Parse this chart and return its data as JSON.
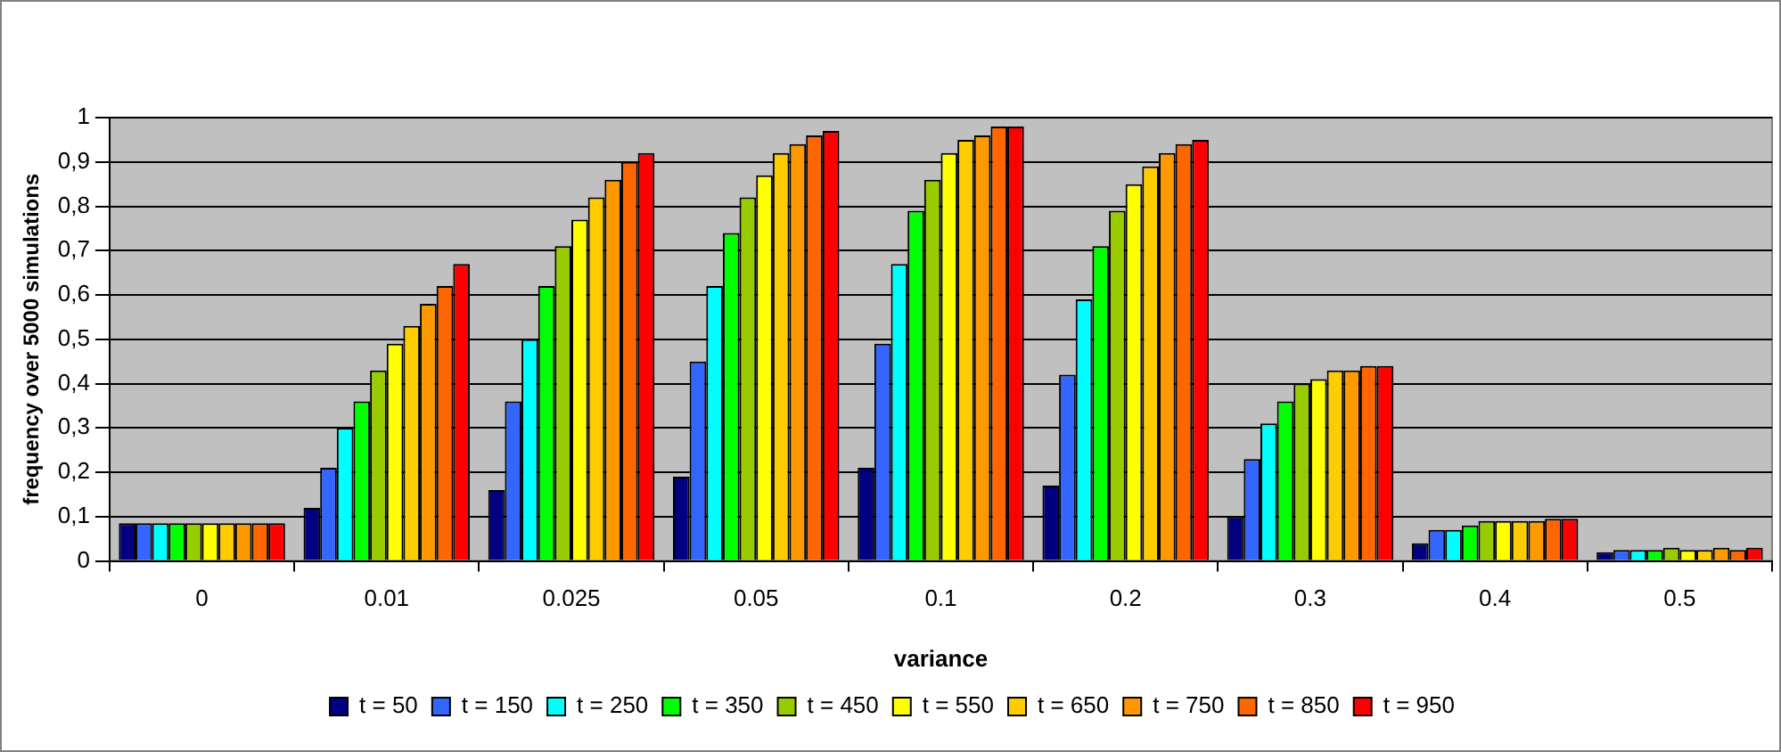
{
  "chart_data": {
    "type": "bar",
    "xlabel": "variance",
    "ylabel": "frequency over 5000 simulations",
    "categories": [
      "0",
      "0.01",
      "0.025",
      "0.05",
      "0.1",
      "0.2",
      "0.3",
      "0.4",
      "0.5"
    ],
    "series": [
      {
        "name": "t = 50",
        "color": "#000080",
        "values": [
          0.085,
          0.12,
          0.16,
          0.19,
          0.21,
          0.17,
          0.1,
          0.04,
          0.02
        ]
      },
      {
        "name": "t = 150",
        "color": "#3366ff",
        "values": [
          0.085,
          0.21,
          0.36,
          0.45,
          0.49,
          0.42,
          0.23,
          0.07,
          0.025
        ]
      },
      {
        "name": "t = 250",
        "color": "#00ffff",
        "values": [
          0.085,
          0.3,
          0.5,
          0.62,
          0.67,
          0.59,
          0.31,
          0.07,
          0.025
        ]
      },
      {
        "name": "t = 350",
        "color": "#00ff00",
        "values": [
          0.085,
          0.36,
          0.62,
          0.74,
          0.79,
          0.71,
          0.36,
          0.08,
          0.025
        ]
      },
      {
        "name": "t = 450",
        "color": "#99cc00",
        "values": [
          0.085,
          0.43,
          0.71,
          0.82,
          0.86,
          0.79,
          0.4,
          0.09,
          0.03
        ]
      },
      {
        "name": "t = 550",
        "color": "#ffff00",
        "values": [
          0.085,
          0.49,
          0.77,
          0.87,
          0.92,
          0.85,
          0.41,
          0.09,
          0.025
        ]
      },
      {
        "name": "t = 650",
        "color": "#ffcc00",
        "values": [
          0.085,
          0.53,
          0.82,
          0.92,
          0.95,
          0.89,
          0.43,
          0.09,
          0.025
        ]
      },
      {
        "name": "t = 750",
        "color": "#ff9900",
        "values": [
          0.085,
          0.58,
          0.86,
          0.94,
          0.96,
          0.92,
          0.43,
          0.09,
          0.03
        ]
      },
      {
        "name": "t = 850",
        "color": "#ff6600",
        "values": [
          0.085,
          0.62,
          0.9,
          0.96,
          0.98,
          0.94,
          0.44,
          0.095,
          0.025
        ]
      },
      {
        "name": "t = 950",
        "color": "#ff0000",
        "values": [
          0.085,
          0.67,
          0.92,
          0.97,
          0.98,
          0.95,
          0.44,
          0.095,
          0.03
        ]
      }
    ],
    "ylim": [
      0,
      1
    ],
    "yticks": [
      0,
      {
        "value": 0.1,
        "label": "0,1"
      },
      {
        "value": 0.2,
        "label": "0,2"
      },
      {
        "value": 0.3,
        "label": "0,3"
      },
      {
        "value": 0.4,
        "label": "0,4"
      },
      {
        "value": 0.5,
        "label": "0,5"
      },
      {
        "value": 0.6,
        "label": "0,6"
      },
      {
        "value": 0.7,
        "label": "0,7"
      },
      {
        "value": 0.8,
        "label": "0,8"
      },
      {
        "value": 0.9,
        "label": "0,9"
      },
      1
    ],
    "grid": "y",
    "legend": "bottom"
  }
}
